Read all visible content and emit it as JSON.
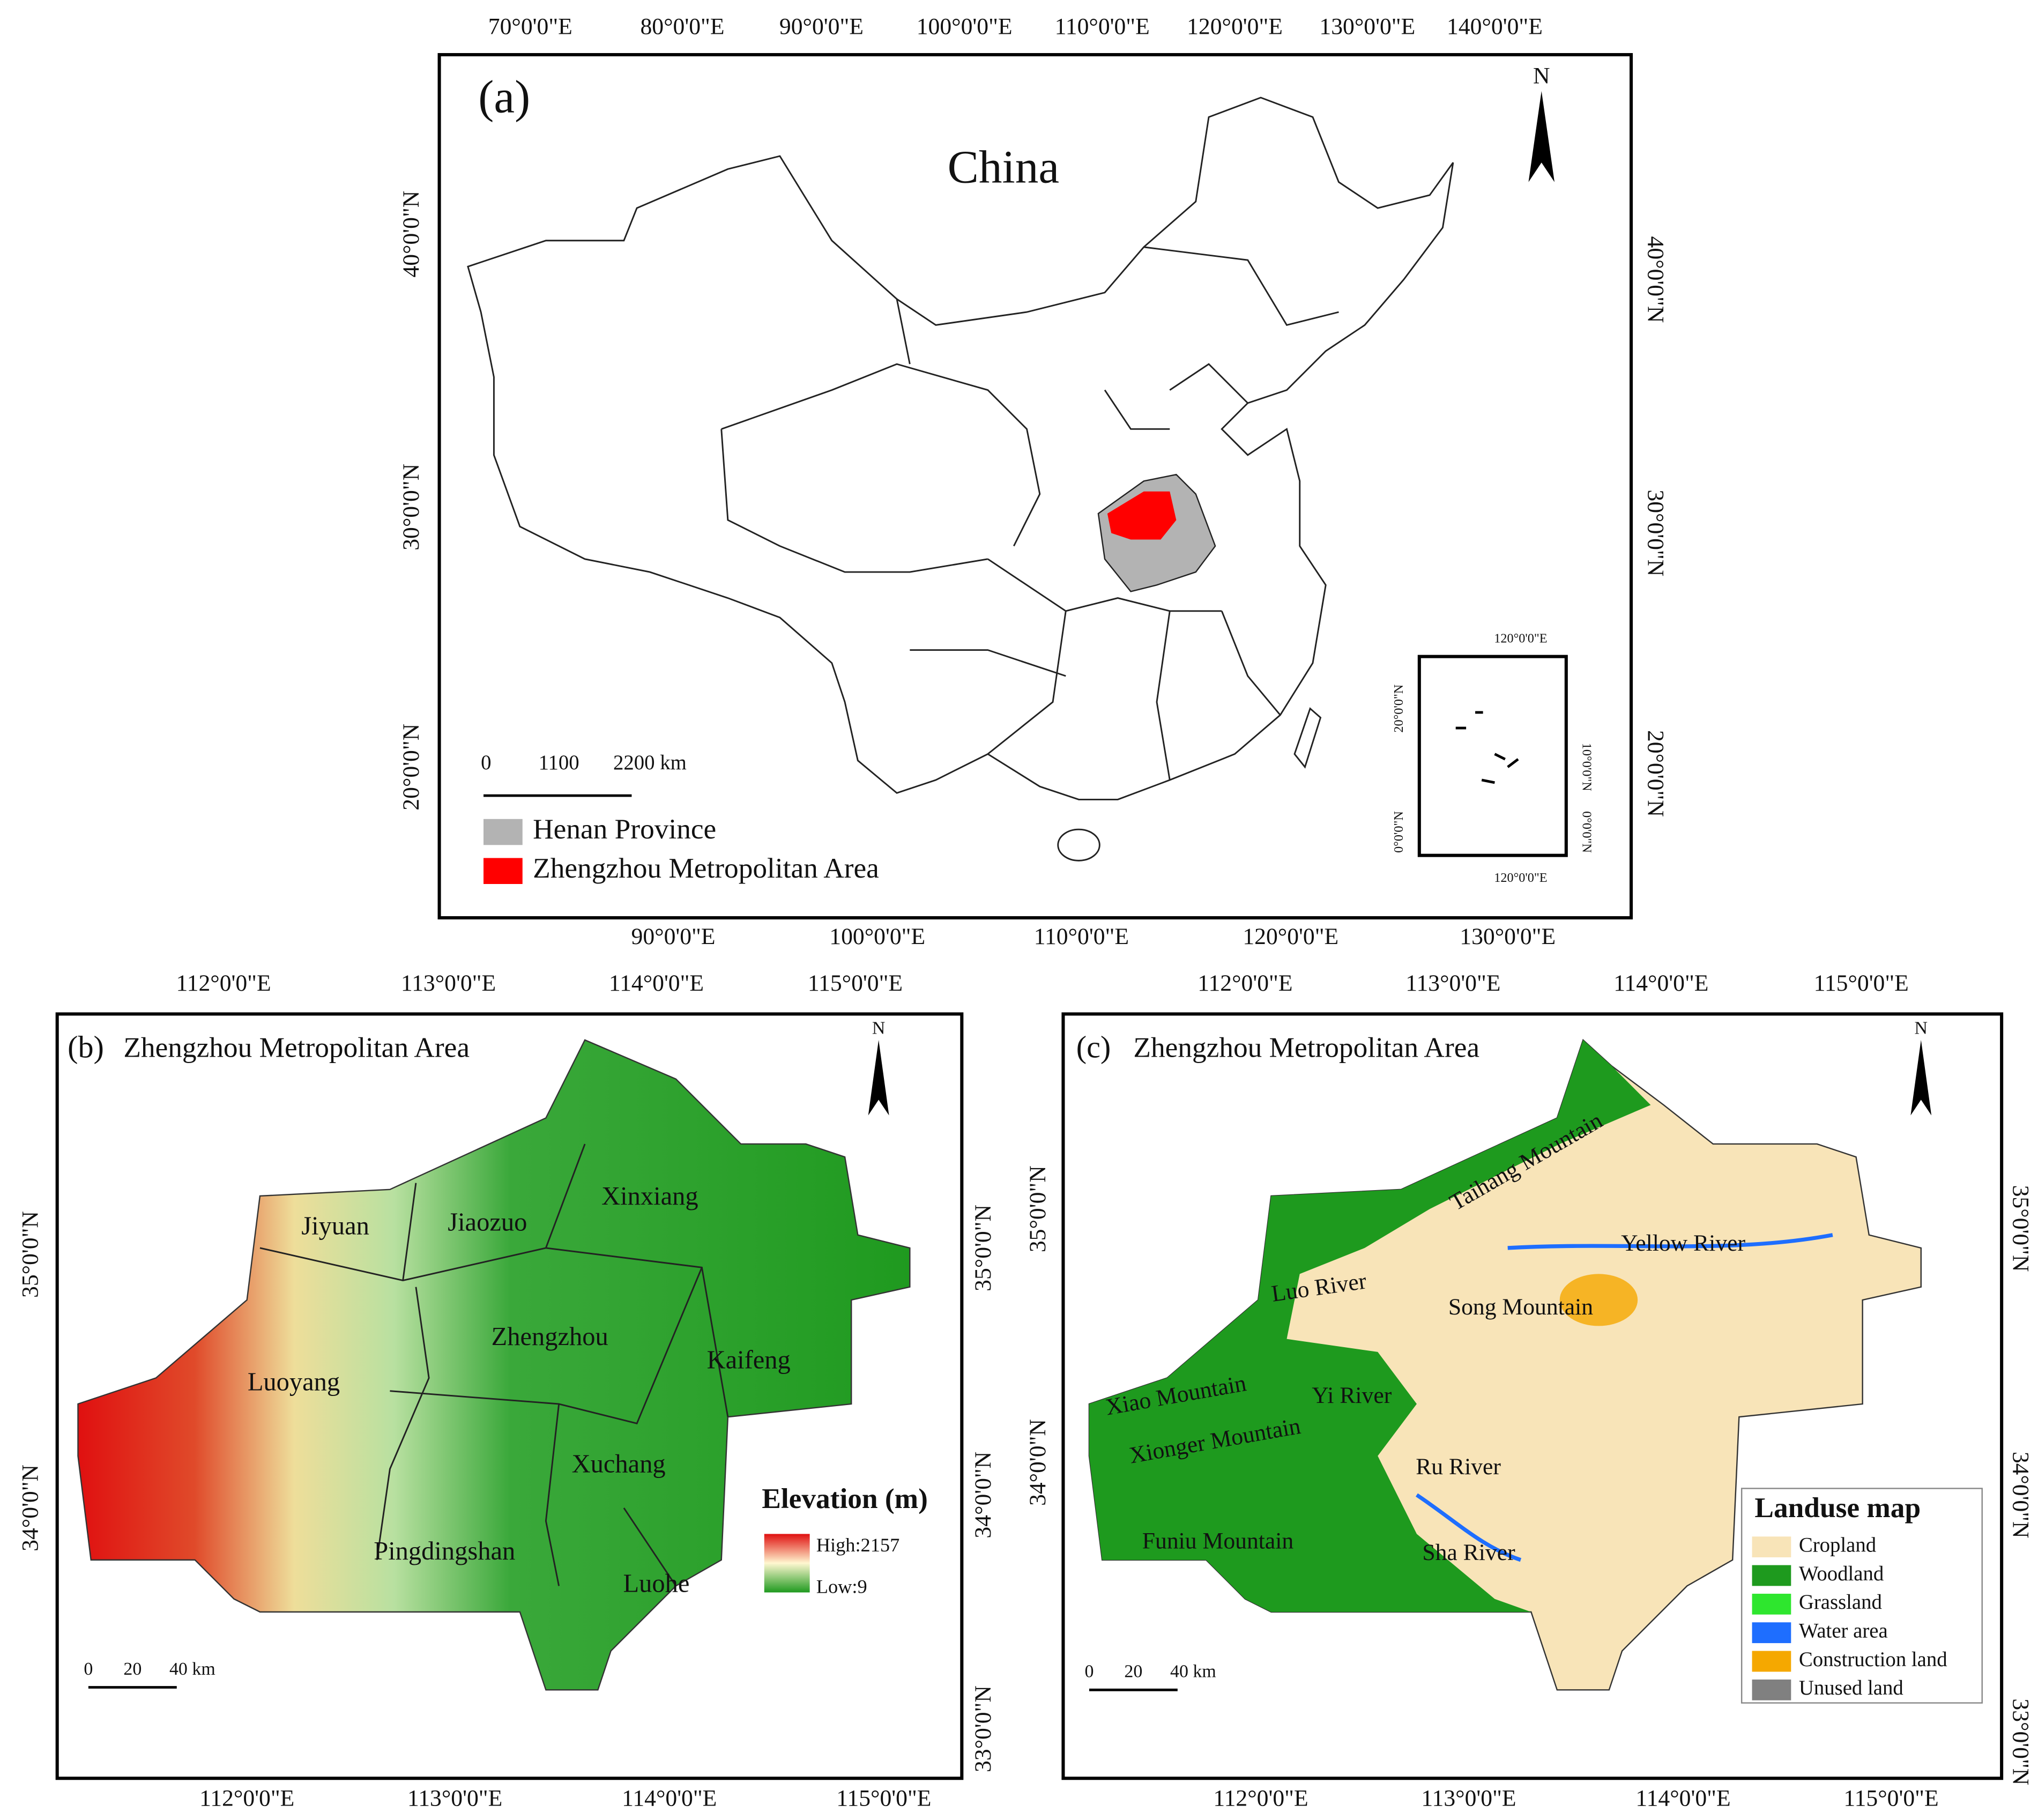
{
  "panel_a": {
    "label": "(a)",
    "title": "China",
    "north": "N",
    "top_ticks": [
      "70°0'0\"E",
      "80°0'0\"E",
      "90°0'0\"E",
      "100°0'0\"E",
      "110°0'0\"E",
      "120°0'0\"E",
      "130°0'0\"E",
      "140°0'0\"E"
    ],
    "bottom_ticks": [
      "90°0'0\"E",
      "100°0'0\"E",
      "110°0'0\"E",
      "120°0'0\"E",
      "130°0'0\"E"
    ],
    "left_ticks": [
      "40°0'0\"N",
      "30°0'0\"N",
      "20°0'0\"N"
    ],
    "right_ticks": [
      "40°0'0\"N",
      "30°0'0\"N",
      "20°0'0\"N"
    ],
    "scale_bar": [
      "0",
      "1100",
      "2200 km"
    ],
    "legend": [
      {
        "label": "Henan Province",
        "color": "#b3b3b3"
      },
      {
        "label": "Zhengzhou Metropolitan Area",
        "color": "#ff0000"
      }
    ],
    "inset": {
      "top_tick": "120°0'0\"E",
      "bottom_tick": "120°0'0\"E",
      "left_ticks": [
        "20°0'0\"N",
        "0°0'0\"N"
      ],
      "right_ticks": [
        "10°0'0\"N",
        "0°0'0\"N"
      ]
    }
  },
  "panel_b": {
    "label": "(b)",
    "title": "Zhengzhou Metropolitan Area",
    "north": "N",
    "top_ticks": [
      "112°0'0\"E",
      "113°0'0\"E",
      "114°0'0\"E",
      "115°0'0\"E"
    ],
    "bottom_ticks": [
      "112°0'0\"E",
      "113°0'0\"E",
      "114°0'0\"E",
      "115°0'0\"E"
    ],
    "left_ticks": [
      "35°0'0\"N",
      "34°0'0\"N"
    ],
    "right_ticks": [
      "35°0'0\"N",
      "34°0'0\"N",
      "33°0'0\"N"
    ],
    "cities": [
      "Jiyuan",
      "Jiaozuo",
      "Xinxiang",
      "Zhengzhou",
      "Kaifeng",
      "Luoyang",
      "Xuchang",
      "Pingdingshan",
      "Luohe"
    ],
    "legend": {
      "title": "Elevation (m)",
      "high": "High:2157",
      "low": "Low:9"
    },
    "scale_bar": [
      "0",
      "20",
      "40 km"
    ]
  },
  "panel_c": {
    "label": "(c)",
    "title": "Zhengzhou Metropolitan Area",
    "north": "N",
    "top_ticks": [
      "112°0'0\"E",
      "113°0'0\"E",
      "114°0'0\"E",
      "115°0'0\"E"
    ],
    "bottom_ticks": [
      "112°0'0\"E",
      "113°0'0\"E",
      "114°0'0\"E",
      "115°0'0\"E"
    ],
    "left_ticks": [
      "35°0'0\"N",
      "34°0'0\"N"
    ],
    "right_ticks": [
      "35°0'0\"N",
      "34°0'0\"N",
      "33°0'0\"N"
    ],
    "places": [
      "Taihang Mountain",
      "Yellow River",
      "Luo River",
      "Song Mountain",
      "Xiao Mountain",
      "Yi River",
      "Xionger Mountain",
      "Ru River",
      "Funiu Mountain",
      "Sha River"
    ],
    "legend": {
      "title": "Landuse map",
      "items": [
        {
          "label": "Cropland",
          "color": "#f8e4b8"
        },
        {
          "label": "Woodland",
          "color": "#1e9a1e"
        },
        {
          "label": "Grassland",
          "color": "#2ee62e"
        },
        {
          "label": "Water area",
          "color": "#1e6eff"
        },
        {
          "label": "Construction land",
          "color": "#f5a800"
        },
        {
          "label": "Unused land",
          "color": "#808080"
        }
      ]
    },
    "scale_bar": [
      "0",
      "20",
      "40 km"
    ]
  }
}
